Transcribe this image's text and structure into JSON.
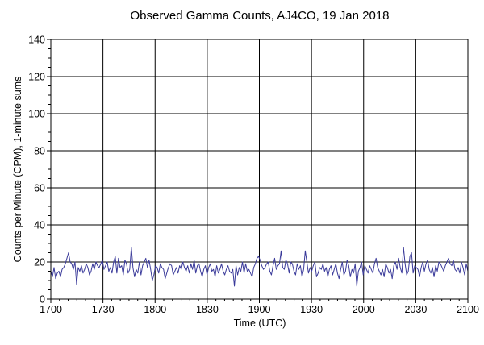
{
  "chart_data": {
    "type": "line",
    "title": "Observed Gamma Counts, AJ4CO, 19 Jan 2018",
    "xlabel": "Time (UTC)",
    "ylabel": "Counts per Minute (CPM), 1-minute sums",
    "x_range": [
      "17:00",
      "21:00"
    ],
    "xlim": [
      0,
      240
    ],
    "ylim": [
      0,
      140
    ],
    "grid": true,
    "x_tick_labels": [
      "1700",
      "1730",
      "1800",
      "1830",
      "1900",
      "1930",
      "2000",
      "2030",
      "2100"
    ],
    "y_tick_labels": [
      "0",
      "20",
      "40",
      "60",
      "80",
      "100",
      "120",
      "140"
    ],
    "line_color": "#3a3a9a",
    "series": [
      {
        "values": [
          15,
          12,
          17,
          11,
          14,
          15,
          12,
          16,
          17,
          19,
          22,
          25,
          20,
          19,
          16,
          20,
          8,
          17,
          15,
          18,
          14,
          16,
          19,
          17,
          13,
          15,
          19,
          16,
          20,
          18,
          17,
          19,
          21,
          16,
          18,
          20,
          15,
          17,
          14,
          20,
          23,
          14,
          22,
          17,
          18,
          13,
          21,
          19,
          14,
          16,
          28,
          17,
          12,
          16,
          14,
          20,
          13,
          18,
          20,
          22,
          17,
          21,
          16,
          10,
          13,
          18,
          17,
          14,
          19,
          17,
          16,
          11,
          14,
          17,
          19,
          18,
          13,
          15,
          17,
          14,
          18,
          16,
          20,
          17,
          15,
          18,
          14,
          19,
          16,
          21,
          14,
          18,
          19,
          15,
          12,
          16,
          18,
          13,
          17,
          19,
          15,
          16,
          12,
          18,
          14,
          16,
          19,
          15,
          13,
          16,
          18,
          15,
          14,
          16,
          7,
          18,
          13,
          17,
          15,
          20,
          14,
          19,
          15,
          16,
          14,
          12,
          17,
          19,
          22,
          23,
          21,
          18,
          16,
          17,
          19,
          20,
          15,
          13,
          18,
          22,
          16,
          18,
          19,
          26,
          17,
          16,
          21,
          19,
          14,
          20,
          19,
          15,
          13,
          19,
          16,
          18,
          12,
          16,
          26,
          20,
          14,
          17,
          15,
          18,
          20,
          12,
          14,
          17,
          16,
          19,
          15,
          17,
          12,
          16,
          18,
          13,
          16,
          19,
          14,
          11,
          16,
          20,
          13,
          15,
          21,
          18,
          12,
          16,
          14,
          19,
          7,
          15,
          17,
          20,
          13,
          18,
          16,
          14,
          18,
          16,
          14,
          19,
          22,
          17,
          15,
          13,
          16,
          12,
          19,
          17,
          14,
          16,
          11,
          18,
          20,
          16,
          22,
          17,
          14,
          28,
          19,
          13,
          15,
          23,
          25,
          14,
          18,
          17,
          16,
          12,
          17,
          20,
          15,
          19,
          21,
          16,
          14,
          17,
          12,
          18,
          15,
          20,
          19,
          17,
          15,
          18,
          20,
          22,
          19,
          18,
          21,
          16,
          15,
          17,
          14,
          20,
          17,
          13,
          19,
          15
        ]
      }
    ]
  }
}
